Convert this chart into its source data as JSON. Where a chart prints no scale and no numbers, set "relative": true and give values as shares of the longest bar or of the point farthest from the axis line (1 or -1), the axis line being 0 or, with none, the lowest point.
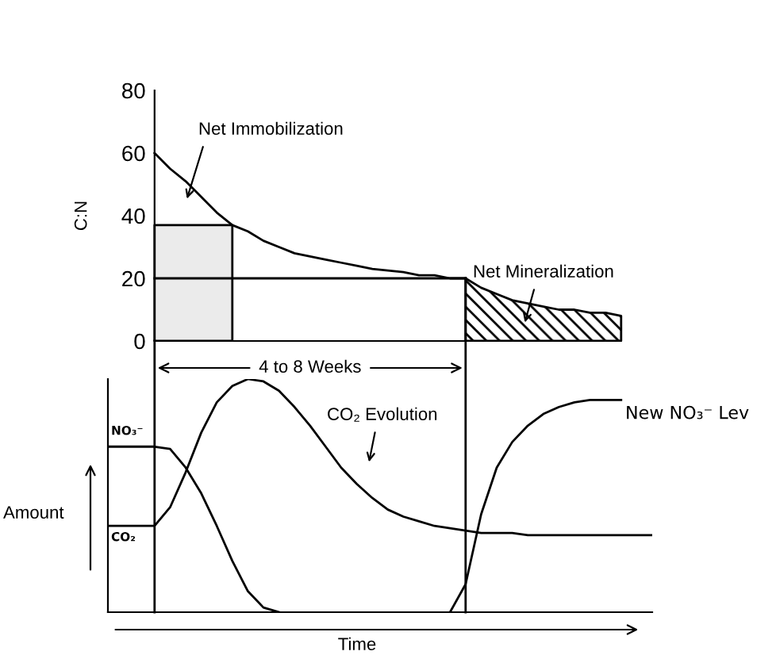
{
  "chart_data": [
    {
      "type": "line",
      "ylabel": "C:N",
      "ylim": [
        0,
        80
      ],
      "yticks": [
        0,
        20,
        40,
        60,
        80
      ],
      "categories": [
        null,
        null,
        null,
        null,
        null,
        null,
        null,
        null,
        null,
        null,
        null,
        null,
        null,
        null,
        null,
        null,
        null,
        null,
        null,
        null,
        null,
        null,
        null,
        null,
        null,
        null,
        null,
        null,
        null,
        null,
        null,
        null,
        null,
        null,
        null,
        null
      ],
      "series": [
        {
          "type": "area",
          "color": "#ebebeb",
          "values": [
            null,
            null,
            null,
            37,
            37,
            37,
            37,
            37,
            37,
            null,
            null,
            null,
            null,
            null,
            null,
            null,
            null,
            null,
            null,
            null,
            null,
            null,
            null,
            null,
            null,
            null,
            null,
            null,
            null,
            null,
            null,
            null,
            null,
            null,
            null,
            null
          ]
        },
        {
          "type": "line",
          "color": "#000000",
          "values": [
            null,
            null,
            null,
            20,
            20,
            20,
            20,
            20,
            20,
            20,
            20,
            20,
            20,
            20,
            20,
            20,
            20,
            20,
            20,
            20,
            20,
            20,
            20,
            20,
            null,
            null,
            null,
            null,
            null,
            null,
            null,
            null,
            null,
            null,
            null,
            null
          ]
        },
        {
          "type": "line",
          "color": "#000000",
          "values": [
            null,
            null,
            null,
            60,
            55,
            51,
            46,
            41,
            37,
            35,
            32,
            30,
            28,
            27,
            26,
            25,
            24,
            23,
            22.5,
            22,
            21,
            21,
            20,
            20,
            null,
            null,
            null,
            null,
            null,
            null,
            null,
            null,
            null,
            null,
            null,
            null
          ]
        },
        {
          "type": "area",
          "color": "#000000",
          "values": [
            null,
            null,
            null,
            null,
            null,
            null,
            null,
            null,
            null,
            null,
            null,
            null,
            null,
            null,
            null,
            null,
            null,
            null,
            null,
            null,
            null,
            null,
            null,
            20,
            17,
            15,
            13,
            12,
            11,
            10,
            10,
            9,
            9,
            8,
            null,
            null
          ]
        }
      ],
      "annotations": [
        "Net Immobilization",
        "Net Mineralization",
        "4 to 8 Weeks"
      ]
    },
    {
      "type": "line",
      "relative": true,
      "xlabel": "Time",
      "ylabel": "Amount",
      "categories": [
        null,
        null,
        null,
        null,
        null,
        null,
        null,
        null,
        null,
        null,
        null,
        null,
        null,
        null,
        null,
        null,
        null,
        null,
        null,
        null,
        null,
        null,
        null,
        null,
        null,
        null,
        null,
        null,
        null,
        null,
        null,
        null,
        null,
        null,
        null,
        null
      ],
      "series": [
        {
          "color": "#000000",
          "values": [
            0.71,
            0.71,
            0.71,
            0.71,
            0.7,
            0.62,
            0.51,
            0.37,
            0.22,
            0.09,
            0.02,
            0,
            null,
            null,
            null,
            null,
            null,
            null,
            null,
            null,
            null,
            null,
            null,
            null,
            null,
            null,
            null,
            null,
            null,
            null,
            null,
            null,
            null,
            null,
            null,
            null
          ]
        },
        {
          "color": "#000000",
          "values": [
            0.37,
            0.37,
            0.37,
            0.37,
            0.45,
            0.6,
            0.77,
            0.9,
            0.97,
            1,
            0.99,
            0.95,
            0.88,
            0.8,
            0.71,
            0.62,
            0.55,
            0.49,
            0.44,
            0.41,
            0.39,
            0.37,
            0.36,
            0.35,
            0.34,
            0.34,
            0.34,
            0.33,
            0.33,
            0.33,
            0.33,
            0.33,
            0.33,
            0.33,
            0.33,
            0.33
          ]
        },
        {
          "color": "#000000",
          "values": [
            null,
            null,
            null,
            null,
            null,
            null,
            null,
            null,
            null,
            null,
            null,
            null,
            null,
            null,
            null,
            null,
            null,
            null,
            null,
            null,
            null,
            null,
            0,
            0.12,
            0.42,
            0.62,
            0.73,
            0.8,
            0.85,
            0.88,
            0.9,
            0.91,
            0.91,
            0.91,
            null,
            null
          ]
        }
      ],
      "annotations": [
        "CO₂ Evolution",
        "NO₃⁻",
        "CO₂",
        "New NO₃⁻ Lev"
      ]
    }
  ]
}
